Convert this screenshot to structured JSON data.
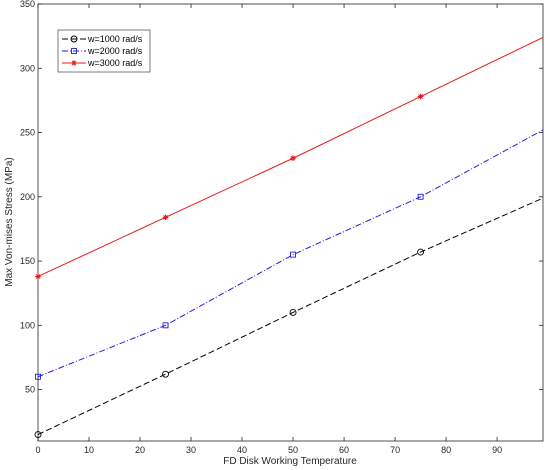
{
  "chart_data": {
    "type": "line",
    "title": "",
    "xlabel": "FD Disk Working Temperature",
    "ylabel": "Max Von-mises Stress (MPa)",
    "xlim": [
      0,
      99
    ],
    "ylim": [
      10,
      350
    ],
    "xticks": [
      0,
      10,
      20,
      30,
      40,
      50,
      60,
      70,
      80,
      90
    ],
    "yticks": [
      50,
      100,
      150,
      200,
      250,
      300,
      350
    ],
    "grid": false,
    "legend_position": "top-left",
    "series": [
      {
        "name": "w=1000 rad/s",
        "color": "#000000",
        "line_style": "dashed",
        "marker": "circle",
        "marker_x": [
          0,
          25,
          50,
          75
        ],
        "marker_y": [
          15,
          62,
          110,
          157
        ],
        "x": [
          0,
          25,
          50,
          75,
          99
        ],
        "y": [
          15,
          62,
          110,
          157,
          199
        ]
      },
      {
        "name": "w=2000 rad/s",
        "color": "#1f1fd6",
        "line_style": "dashdot",
        "marker": "square",
        "marker_x": [
          0,
          25,
          50,
          75
        ],
        "marker_y": [
          60,
          100,
          155,
          200
        ],
        "x": [
          0,
          25,
          50,
          75,
          99
        ],
        "y": [
          60,
          100,
          155,
          200,
          252
        ]
      },
      {
        "name": "w=3000 rad/s",
        "color": "#e8181b",
        "line_style": "solid",
        "marker": "asterisk",
        "marker_x": [
          0,
          25,
          50,
          75
        ],
        "marker_y": [
          138,
          184,
          230,
          278
        ],
        "x": [
          0,
          25,
          50,
          75,
          99
        ],
        "y": [
          138,
          184,
          230,
          278,
          324
        ]
      }
    ]
  }
}
